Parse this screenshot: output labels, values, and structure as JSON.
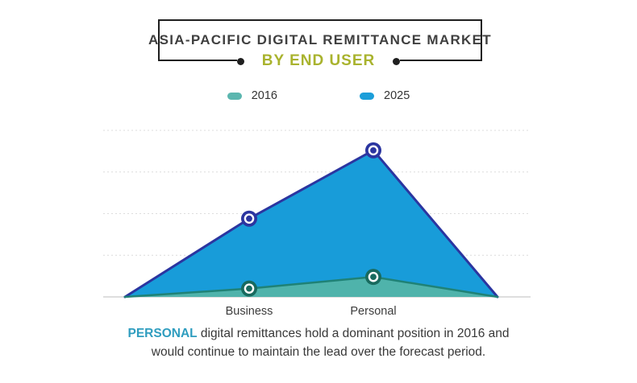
{
  "header": {
    "title": "ASIA-PACIFIC DIGITAL REMITTANCE MARKET",
    "subtitle": "BY END USER",
    "subtitle_color": "#a9b32e"
  },
  "legend": {
    "items": [
      {
        "label": "2016",
        "color": "#5bb6af"
      },
      {
        "label": "2025",
        "color": "#1b9ed9"
      }
    ]
  },
  "chart_data": {
    "type": "area",
    "categories": [
      "Business",
      "Personal"
    ],
    "series": [
      {
        "name": "2016",
        "values": [
          5,
          12
        ],
        "fill": "#4fb3ab",
        "stroke": "#1f8276",
        "marker": "#186a5e"
      },
      {
        "name": "2025",
        "values": [
          47,
          88
        ],
        "fill": "#189cd9",
        "stroke": "#2b35a0",
        "marker": "#2b35a0"
      }
    ],
    "ylim": [
      0,
      100
    ],
    "grid": "horizontal-dashed",
    "legend_position": "top"
  },
  "caption": {
    "highlight": "PERSONAL",
    "line1_rest": " digital remittances hold a dominant position in 2016 and",
    "line2": "would continue to maintain the lead over the forecast period.",
    "highlight_color": "#2f9dbf"
  }
}
